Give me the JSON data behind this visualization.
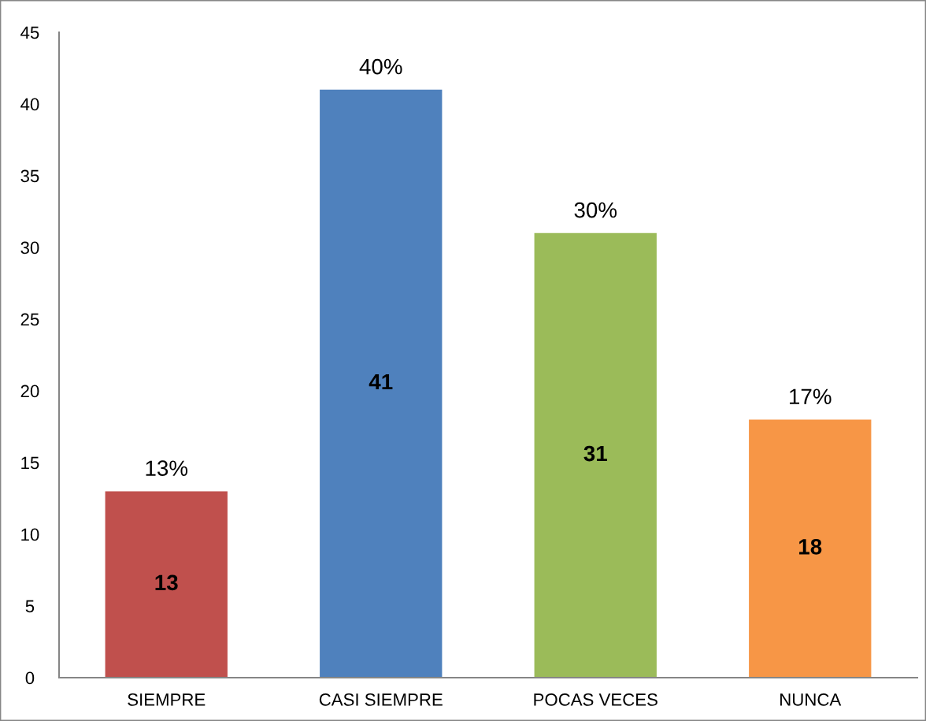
{
  "chart_data": {
    "type": "bar",
    "categories": [
      "SIEMPRE",
      "CASI SIEMPRE",
      "POCAS VECES",
      "NUNCA"
    ],
    "values": [
      13,
      41,
      31,
      18
    ],
    "colors": [
      "#c0504d",
      "#4f81bd",
      "#9bbb59",
      "#f79646"
    ],
    "ylim": [
      0,
      45
    ],
    "yticks": [
      0,
      5,
      10,
      15,
      20,
      25,
      30,
      35,
      40,
      45
    ],
    "data_labels": true,
    "grid": false,
    "legend": false,
    "annotations": [
      {
        "text": "13%",
        "x": "SIEMPRE",
        "y": 13
      },
      {
        "text": "40%",
        "x": "CASI SIEMPRE",
        "y": 41
      },
      {
        "text": "30%",
        "x": "POCAS VECES",
        "y": 31
      },
      {
        "text": "17%",
        "x": "NUNCA",
        "y": 18
      }
    ]
  }
}
